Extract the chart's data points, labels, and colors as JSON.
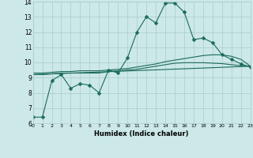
{
  "title": "",
  "xlabel": "Humidex (Indice chaleur)",
  "bg_color": "#cce8e8",
  "grid_color": "#aacccc",
  "line_color": "#1a6b5a",
  "xlim": [
    0,
    23
  ],
  "ylim": [
    6,
    14
  ],
  "xticks": [
    0,
    1,
    2,
    3,
    4,
    5,
    6,
    7,
    8,
    9,
    10,
    11,
    12,
    13,
    14,
    15,
    16,
    17,
    18,
    19,
    20,
    21,
    22,
    23
  ],
  "yticks": [
    6,
    7,
    8,
    9,
    10,
    11,
    12,
    13,
    14
  ],
  "series1_x": [
    0,
    1,
    2,
    3,
    4,
    5,
    6,
    7,
    8,
    9,
    10,
    11,
    12,
    13,
    14,
    15,
    16,
    17,
    18,
    19,
    20,
    21,
    22,
    23
  ],
  "series1_y": [
    6.4,
    6.4,
    8.8,
    9.2,
    8.3,
    8.6,
    8.5,
    8.0,
    9.5,
    9.3,
    10.3,
    12.0,
    13.0,
    12.6,
    13.9,
    13.9,
    13.3,
    11.5,
    11.6,
    11.3,
    10.5,
    10.2,
    9.9,
    9.7
  ],
  "series2_x": [
    0,
    1,
    2,
    3,
    4,
    5,
    6,
    7,
    8,
    9,
    10,
    11,
    12,
    13,
    14,
    15,
    16,
    17,
    18,
    19,
    20,
    21,
    22,
    23
  ],
  "series2_y": [
    9.3,
    9.3,
    9.35,
    9.4,
    9.4,
    9.45,
    9.45,
    9.45,
    9.5,
    9.55,
    9.6,
    9.7,
    9.8,
    9.9,
    10.05,
    10.15,
    10.25,
    10.35,
    10.45,
    10.5,
    10.5,
    10.4,
    10.2,
    9.75
  ],
  "series3_x": [
    0,
    23
  ],
  "series3_y": [
    9.2,
    9.75
  ],
  "series4_x": [
    0,
    1,
    2,
    3,
    4,
    5,
    6,
    7,
    8,
    9,
    10,
    11,
    12,
    13,
    14,
    15,
    16,
    17,
    18,
    19,
    20,
    21,
    22,
    23
  ],
  "series4_y": [
    9.2,
    9.2,
    9.25,
    9.3,
    9.3,
    9.3,
    9.3,
    9.3,
    9.4,
    9.45,
    9.5,
    9.55,
    9.65,
    9.75,
    9.85,
    9.95,
    9.98,
    9.98,
    9.98,
    9.95,
    9.92,
    9.85,
    9.78,
    9.75
  ]
}
